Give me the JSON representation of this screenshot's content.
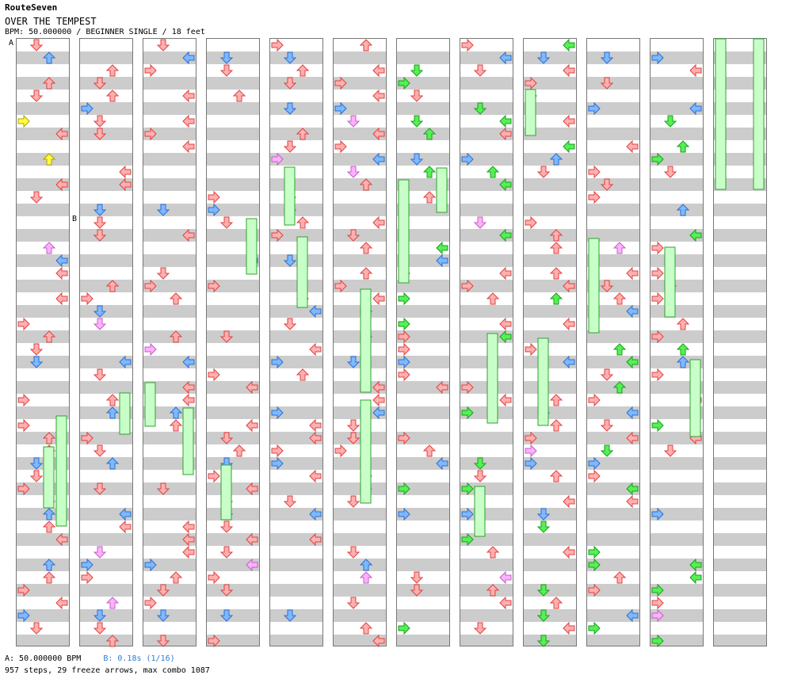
{
  "header": {
    "artist": "RouteSeven",
    "title": "OVER THE TEMPEST",
    "info": "BPM: 50.000000 / BEGINNER SINGLE / 18 feet"
  },
  "markers": {
    "a": "A",
    "b": "B"
  },
  "legend": {
    "a_text": "A: 50.000000 BPM",
    "b_text": "B: 0.18s (1/16)"
  },
  "stats": "957 steps, 29 freeze arrows, max combo 1087",
  "colors": {
    "red_fill": "#ffb0b0",
    "red_stroke": "#e04040",
    "blue_fill": "#7fb8ff",
    "blue_stroke": "#2a6fd0",
    "green_fill": "#55f055",
    "green_stroke": "#18a018",
    "pink_fill": "#ffb0ff",
    "pink_stroke": "#c060c0",
    "yellow_fill": "#ffff40",
    "yellow_stroke": "#b0a000",
    "freeze_fill": "#c8ffc8",
    "freeze_stroke": "#30a030"
  }
}
